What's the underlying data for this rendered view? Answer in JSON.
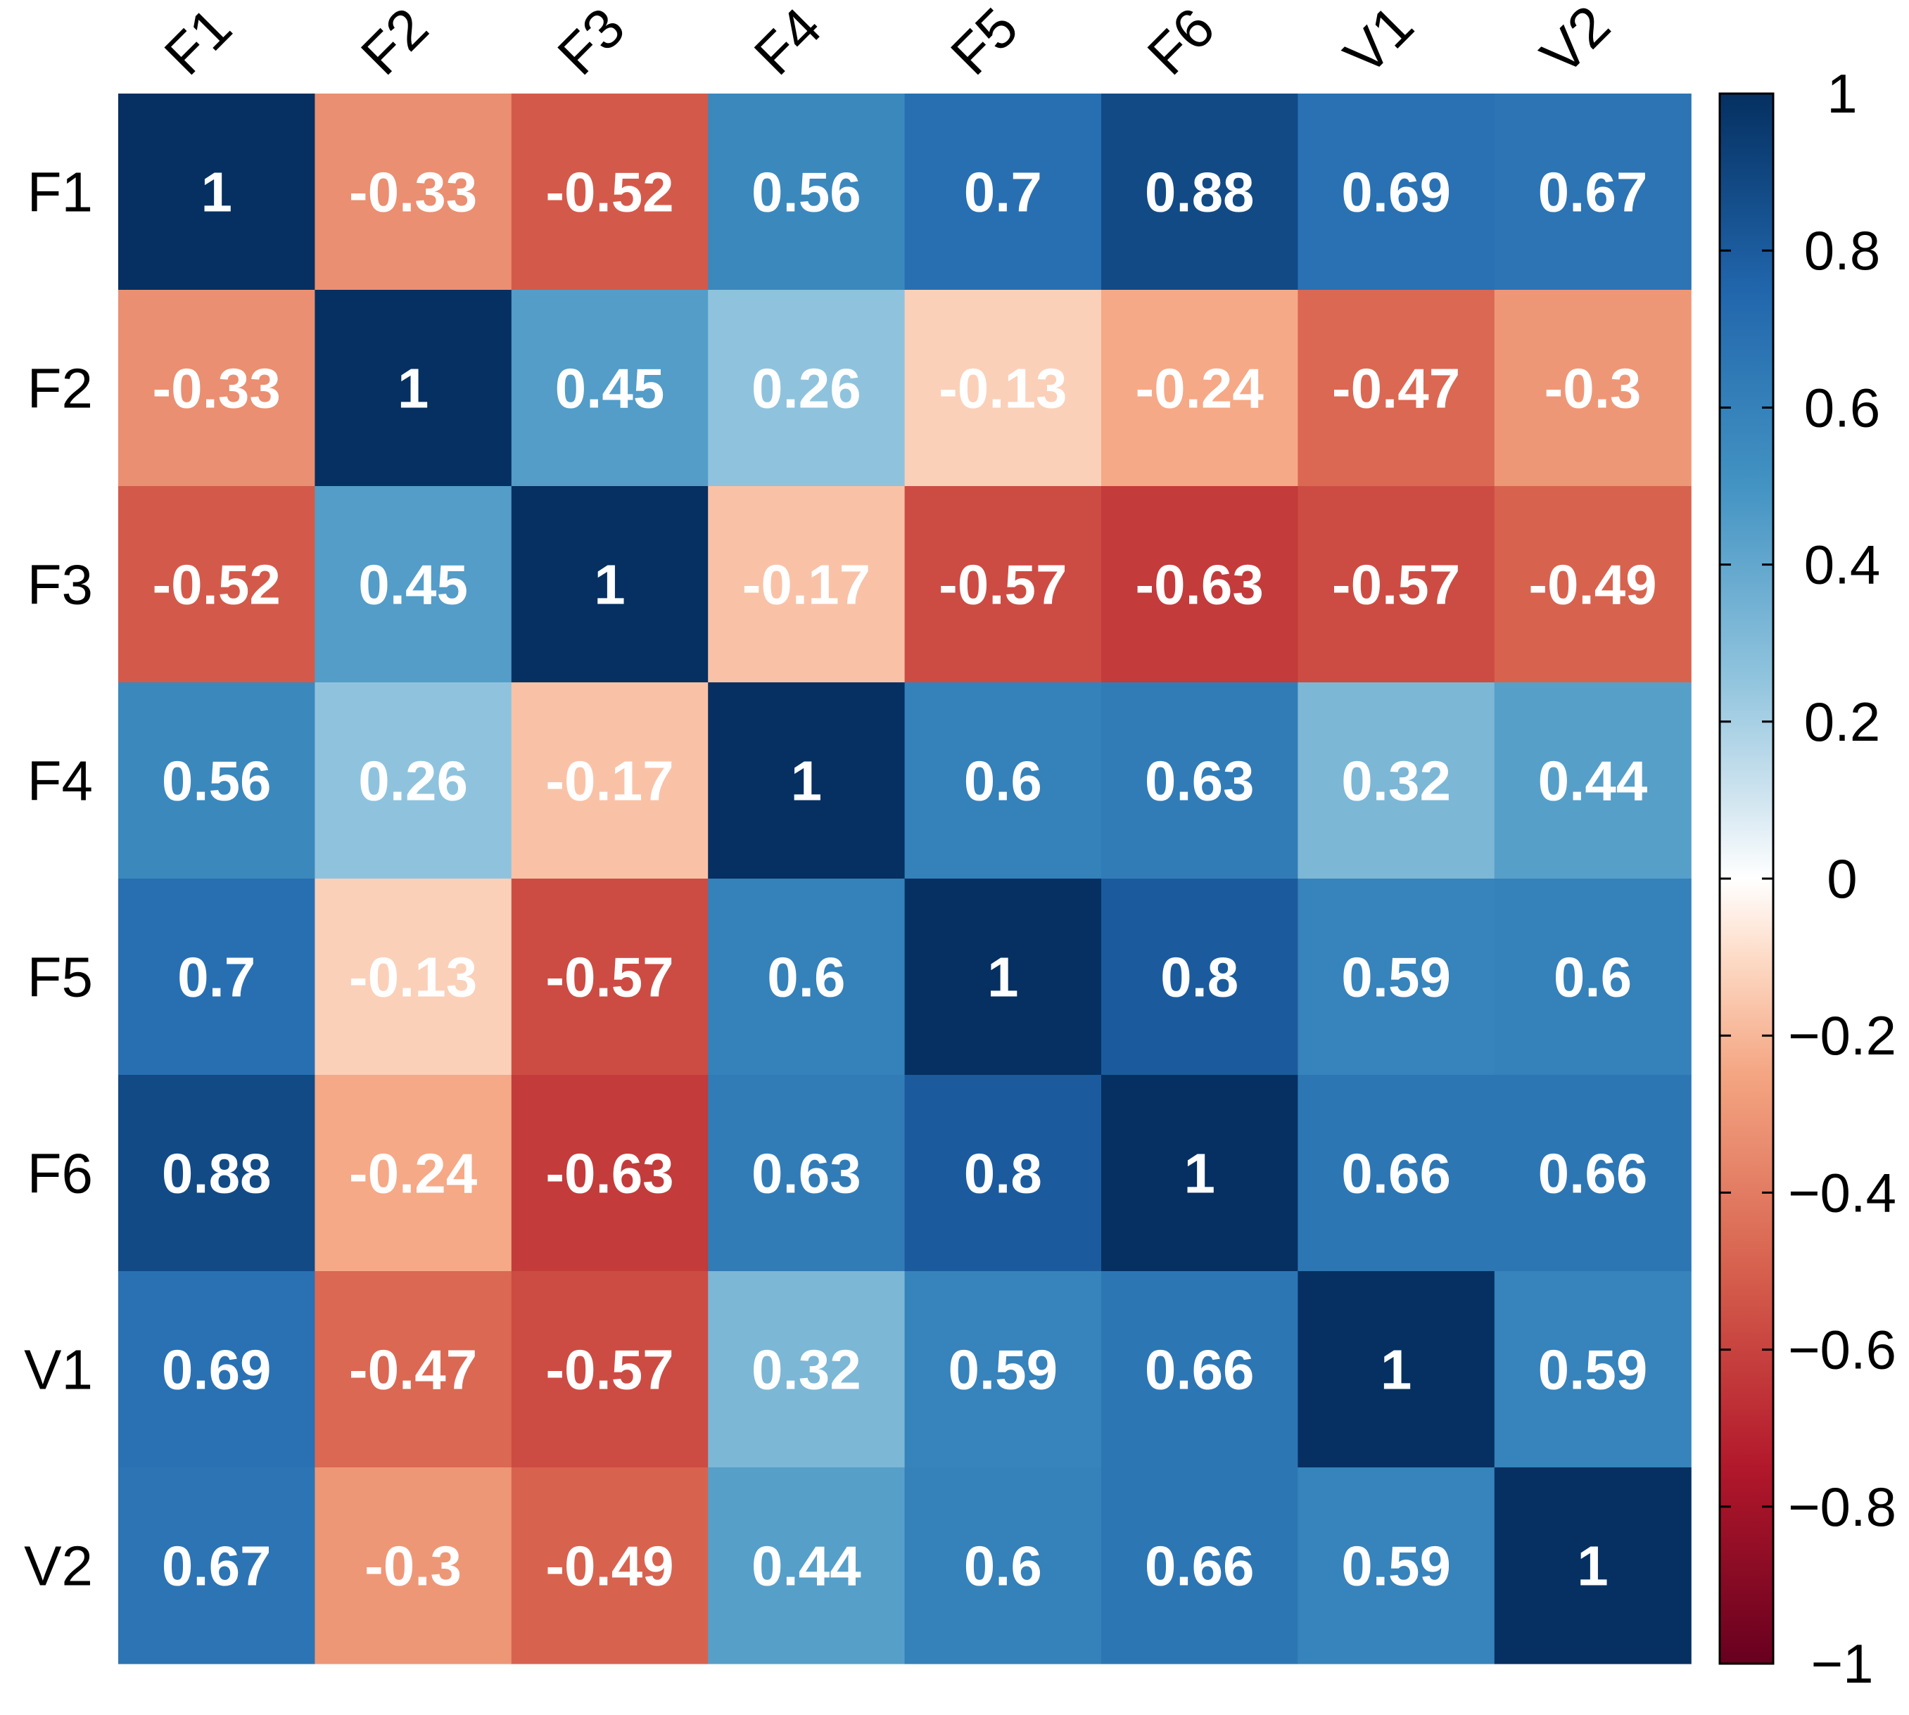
{
  "chart_data": {
    "type": "heatmap",
    "title": "",
    "row_labels": [
      "F1",
      "F2",
      "F3",
      "F4",
      "F5",
      "F6",
      "V1",
      "V2"
    ],
    "col_labels": [
      "F1",
      "F2",
      "F3",
      "F4",
      "F5",
      "F6",
      "V1",
      "V2"
    ],
    "values": [
      [
        1,
        -0.33,
        -0.52,
        0.56,
        0.7,
        0.88,
        0.69,
        0.67
      ],
      [
        -0.33,
        1,
        0.45,
        0.26,
        -0.13,
        -0.24,
        -0.47,
        -0.3
      ],
      [
        -0.52,
        0.45,
        1,
        -0.17,
        -0.57,
        -0.63,
        -0.57,
        -0.49
      ],
      [
        0.56,
        0.26,
        -0.17,
        1,
        0.6,
        0.63,
        0.32,
        0.44
      ],
      [
        0.7,
        -0.13,
        -0.57,
        0.6,
        1,
        0.8,
        0.59,
        0.6
      ],
      [
        0.88,
        -0.24,
        -0.63,
        0.63,
        0.8,
        1,
        0.66,
        0.66
      ],
      [
        0.69,
        -0.47,
        -0.57,
        0.32,
        0.59,
        0.66,
        1,
        0.59
      ],
      [
        0.67,
        -0.3,
        -0.49,
        0.44,
        0.6,
        0.66,
        0.59,
        1
      ]
    ],
    "cell_labels": [
      [
        "1",
        "-0.33",
        "-0.52",
        "0.56",
        "0.7",
        "0.88",
        "0.69",
        "0.67"
      ],
      [
        "-0.33",
        "1",
        "0.45",
        "0.26",
        "-0.13",
        "-0.24",
        "-0.47",
        "-0.3"
      ],
      [
        "-0.52",
        "0.45",
        "1",
        "-0.17",
        "-0.57",
        "-0.63",
        "-0.57",
        "-0.49"
      ],
      [
        "0.56",
        "0.26",
        "-0.17",
        "1",
        "0.6",
        "0.63",
        "0.32",
        "0.44"
      ],
      [
        "0.7",
        "-0.13",
        "-0.57",
        "0.6",
        "1",
        "0.8",
        "0.59",
        "0.6"
      ],
      [
        "0.88",
        "-0.24",
        "-0.63",
        "0.63",
        "0.8",
        "1",
        "0.66",
        "0.66"
      ],
      [
        "0.69",
        "-0.47",
        "-0.57",
        "0.32",
        "0.59",
        "0.66",
        "1",
        "0.59"
      ],
      [
        "0.67",
        "-0.3",
        "-0.49",
        "0.44",
        "0.6",
        "0.66",
        "0.59",
        "1"
      ]
    ],
    "colorbar": {
      "range": [
        -1,
        1
      ],
      "ticks": [
        1,
        0.8,
        0.6,
        0.4,
        0.2,
        0,
        -0.2,
        -0.4,
        -0.6,
        -0.8,
        -1
      ],
      "tick_labels": [
        "1",
        "0.8",
        "0.6",
        "0.4",
        "0.2",
        "0",
        "−0.2",
        "−0.4",
        "−0.6",
        "−0.8",
        "−1"
      ],
      "position": "right"
    },
    "color_scale": {
      "name": "RdBu",
      "stops": [
        [
          -1.0,
          "#67001F"
        ],
        [
          -0.75,
          "#B2182B"
        ],
        [
          -0.5,
          "#D6604D"
        ],
        [
          -0.25,
          "#F4A582"
        ],
        [
          -0.1,
          "#FDDBC7"
        ],
        [
          0.0,
          "#FFFFFF"
        ],
        [
          0.1,
          "#D1E5F0"
        ],
        [
          0.25,
          "#92C5DE"
        ],
        [
          0.5,
          "#4393C3"
        ],
        [
          0.75,
          "#2166AC"
        ],
        [
          1.0,
          "#053061"
        ]
      ]
    },
    "col_label_rotation": "diagonal",
    "cell_text_color": "#FFFFFF"
  }
}
